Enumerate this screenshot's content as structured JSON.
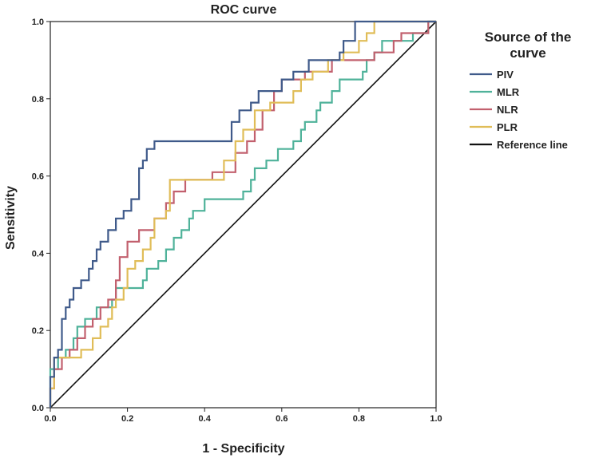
{
  "chart_data": {
    "type": "line",
    "title": "ROC curve",
    "xlabel": "1 - Specificity",
    "ylabel": "Sensitivity",
    "xlim": [
      0,
      1
    ],
    "ylim": [
      0,
      1
    ],
    "x_ticks": [
      "0.0",
      "0.2",
      "0.4",
      "0.6",
      "0.8",
      "1.0"
    ],
    "y_ticks": [
      "0.0",
      "0.2",
      "0.4",
      "0.6",
      "0.8",
      "1.0"
    ],
    "legend": {
      "title_lines": [
        "Source of the",
        "curve"
      ],
      "placement": "right"
    },
    "series": [
      {
        "name": "PIV",
        "color": "#3f5a8a",
        "points": [
          [
            0,
            0
          ],
          [
            0,
            0.08
          ],
          [
            0.01,
            0.08
          ],
          [
            0.01,
            0.13
          ],
          [
            0.02,
            0.13
          ],
          [
            0.02,
            0.15
          ],
          [
            0.03,
            0.15
          ],
          [
            0.03,
            0.23
          ],
          [
            0.04,
            0.23
          ],
          [
            0.04,
            0.26
          ],
          [
            0.05,
            0.26
          ],
          [
            0.05,
            0.28
          ],
          [
            0.06,
            0.28
          ],
          [
            0.06,
            0.31
          ],
          [
            0.08,
            0.31
          ],
          [
            0.08,
            0.33
          ],
          [
            0.1,
            0.33
          ],
          [
            0.1,
            0.36
          ],
          [
            0.11,
            0.36
          ],
          [
            0.11,
            0.38
          ],
          [
            0.12,
            0.38
          ],
          [
            0.12,
            0.41
          ],
          [
            0.13,
            0.41
          ],
          [
            0.13,
            0.43
          ],
          [
            0.15,
            0.43
          ],
          [
            0.15,
            0.46
          ],
          [
            0.17,
            0.46
          ],
          [
            0.17,
            0.49
          ],
          [
            0.19,
            0.49
          ],
          [
            0.19,
            0.51
          ],
          [
            0.21,
            0.51
          ],
          [
            0.21,
            0.54
          ],
          [
            0.23,
            0.54
          ],
          [
            0.23,
            0.62
          ],
          [
            0.24,
            0.62
          ],
          [
            0.24,
            0.64
          ],
          [
            0.25,
            0.64
          ],
          [
            0.25,
            0.67
          ],
          [
            0.27,
            0.67
          ],
          [
            0.27,
            0.69
          ],
          [
            0.47,
            0.69
          ],
          [
            0.47,
            0.74
          ],
          [
            0.49,
            0.74
          ],
          [
            0.49,
            0.77
          ],
          [
            0.52,
            0.77
          ],
          [
            0.52,
            0.79
          ],
          [
            0.54,
            0.79
          ],
          [
            0.54,
            0.82
          ],
          [
            0.6,
            0.82
          ],
          [
            0.6,
            0.85
          ],
          [
            0.63,
            0.85
          ],
          [
            0.63,
            0.87
          ],
          [
            0.67,
            0.87
          ],
          [
            0.67,
            0.9
          ],
          [
            0.75,
            0.9
          ],
          [
            0.75,
            0.92
          ],
          [
            0.76,
            0.92
          ],
          [
            0.76,
            0.95
          ],
          [
            0.79,
            0.95
          ],
          [
            0.79,
            1.0
          ],
          [
            1.0,
            1.0
          ]
        ]
      },
      {
        "name": "MLR",
        "color": "#4fb29a",
        "points": [
          [
            0,
            0
          ],
          [
            0,
            0.1
          ],
          [
            0.02,
            0.1
          ],
          [
            0.02,
            0.13
          ],
          [
            0.04,
            0.13
          ],
          [
            0.04,
            0.15
          ],
          [
            0.06,
            0.15
          ],
          [
            0.06,
            0.18
          ],
          [
            0.07,
            0.18
          ],
          [
            0.07,
            0.21
          ],
          [
            0.09,
            0.21
          ],
          [
            0.09,
            0.23
          ],
          [
            0.12,
            0.23
          ],
          [
            0.12,
            0.26
          ],
          [
            0.16,
            0.26
          ],
          [
            0.16,
            0.28
          ],
          [
            0.17,
            0.28
          ],
          [
            0.17,
            0.31
          ],
          [
            0.24,
            0.31
          ],
          [
            0.24,
            0.33
          ],
          [
            0.25,
            0.33
          ],
          [
            0.25,
            0.36
          ],
          [
            0.28,
            0.36
          ],
          [
            0.28,
            0.38
          ],
          [
            0.3,
            0.38
          ],
          [
            0.3,
            0.41
          ],
          [
            0.32,
            0.41
          ],
          [
            0.32,
            0.44
          ],
          [
            0.34,
            0.44
          ],
          [
            0.34,
            0.46
          ],
          [
            0.36,
            0.46
          ],
          [
            0.36,
            0.49
          ],
          [
            0.37,
            0.49
          ],
          [
            0.37,
            0.51
          ],
          [
            0.4,
            0.51
          ],
          [
            0.4,
            0.54
          ],
          [
            0.5,
            0.54
          ],
          [
            0.5,
            0.56
          ],
          [
            0.52,
            0.56
          ],
          [
            0.52,
            0.59
          ],
          [
            0.53,
            0.59
          ],
          [
            0.53,
            0.62
          ],
          [
            0.56,
            0.62
          ],
          [
            0.56,
            0.64
          ],
          [
            0.59,
            0.64
          ],
          [
            0.59,
            0.67
          ],
          [
            0.63,
            0.67
          ],
          [
            0.63,
            0.69
          ],
          [
            0.65,
            0.69
          ],
          [
            0.65,
            0.72
          ],
          [
            0.66,
            0.72
          ],
          [
            0.66,
            0.74
          ],
          [
            0.69,
            0.74
          ],
          [
            0.69,
            0.77
          ],
          [
            0.7,
            0.77
          ],
          [
            0.7,
            0.79
          ],
          [
            0.73,
            0.79
          ],
          [
            0.73,
            0.82
          ],
          [
            0.75,
            0.82
          ],
          [
            0.75,
            0.85
          ],
          [
            0.81,
            0.85
          ],
          [
            0.81,
            0.87
          ],
          [
            0.82,
            0.87
          ],
          [
            0.82,
            0.9
          ],
          [
            0.84,
            0.9
          ],
          [
            0.84,
            0.92
          ],
          [
            0.86,
            0.92
          ],
          [
            0.86,
            0.95
          ],
          [
            0.94,
            0.95
          ],
          [
            0.94,
            0.97
          ],
          [
            0.98,
            0.97
          ],
          [
            0.98,
            1.0
          ],
          [
            1.0,
            1.0
          ]
        ]
      },
      {
        "name": "NLR",
        "color": "#c2606e",
        "points": [
          [
            0,
            0
          ],
          [
            0,
            0.05
          ],
          [
            0.01,
            0.05
          ],
          [
            0.01,
            0.1
          ],
          [
            0.03,
            0.1
          ],
          [
            0.03,
            0.13
          ],
          [
            0.05,
            0.13
          ],
          [
            0.05,
            0.15
          ],
          [
            0.07,
            0.15
          ],
          [
            0.07,
            0.18
          ],
          [
            0.09,
            0.18
          ],
          [
            0.09,
            0.21
          ],
          [
            0.11,
            0.21
          ],
          [
            0.11,
            0.23
          ],
          [
            0.13,
            0.23
          ],
          [
            0.13,
            0.26
          ],
          [
            0.15,
            0.26
          ],
          [
            0.15,
            0.28
          ],
          [
            0.17,
            0.28
          ],
          [
            0.17,
            0.33
          ],
          [
            0.18,
            0.33
          ],
          [
            0.18,
            0.39
          ],
          [
            0.2,
            0.39
          ],
          [
            0.2,
            0.43
          ],
          [
            0.23,
            0.43
          ],
          [
            0.23,
            0.46
          ],
          [
            0.27,
            0.46
          ],
          [
            0.27,
            0.49
          ],
          [
            0.3,
            0.49
          ],
          [
            0.3,
            0.53
          ],
          [
            0.32,
            0.53
          ],
          [
            0.32,
            0.56
          ],
          [
            0.35,
            0.56
          ],
          [
            0.35,
            0.59
          ],
          [
            0.42,
            0.59
          ],
          [
            0.42,
            0.61
          ],
          [
            0.48,
            0.61
          ],
          [
            0.48,
            0.66
          ],
          [
            0.51,
            0.66
          ],
          [
            0.51,
            0.69
          ],
          [
            0.53,
            0.69
          ],
          [
            0.53,
            0.72
          ],
          [
            0.55,
            0.72
          ],
          [
            0.55,
            0.77
          ],
          [
            0.58,
            0.77
          ],
          [
            0.58,
            0.82
          ],
          [
            0.6,
            0.82
          ],
          [
            0.6,
            0.85
          ],
          [
            0.66,
            0.85
          ],
          [
            0.66,
            0.87
          ],
          [
            0.73,
            0.87
          ],
          [
            0.73,
            0.9
          ],
          [
            0.84,
            0.9
          ],
          [
            0.84,
            0.92
          ],
          [
            0.89,
            0.92
          ],
          [
            0.89,
            0.95
          ],
          [
            0.91,
            0.95
          ],
          [
            0.91,
            0.97
          ],
          [
            0.98,
            0.97
          ],
          [
            0.98,
            1.0
          ],
          [
            1.0,
            1.0
          ]
        ]
      },
      {
        "name": "PLR",
        "color": "#e0bd58",
        "points": [
          [
            0,
            0
          ],
          [
            0,
            0.05
          ],
          [
            0.01,
            0.05
          ],
          [
            0.01,
            0.13
          ],
          [
            0.08,
            0.13
          ],
          [
            0.08,
            0.15
          ],
          [
            0.11,
            0.15
          ],
          [
            0.11,
            0.18
          ],
          [
            0.13,
            0.18
          ],
          [
            0.13,
            0.21
          ],
          [
            0.15,
            0.21
          ],
          [
            0.15,
            0.23
          ],
          [
            0.16,
            0.23
          ],
          [
            0.16,
            0.26
          ],
          [
            0.17,
            0.26
          ],
          [
            0.17,
            0.28
          ],
          [
            0.19,
            0.28
          ],
          [
            0.19,
            0.31
          ],
          [
            0.2,
            0.31
          ],
          [
            0.2,
            0.36
          ],
          [
            0.22,
            0.36
          ],
          [
            0.22,
            0.38
          ],
          [
            0.24,
            0.38
          ],
          [
            0.24,
            0.41
          ],
          [
            0.26,
            0.41
          ],
          [
            0.26,
            0.44
          ],
          [
            0.27,
            0.44
          ],
          [
            0.27,
            0.49
          ],
          [
            0.3,
            0.49
          ],
          [
            0.3,
            0.51
          ],
          [
            0.31,
            0.51
          ],
          [
            0.31,
            0.59
          ],
          [
            0.45,
            0.59
          ],
          [
            0.45,
            0.64
          ],
          [
            0.48,
            0.64
          ],
          [
            0.48,
            0.69
          ],
          [
            0.5,
            0.69
          ],
          [
            0.5,
            0.72
          ],
          [
            0.53,
            0.72
          ],
          [
            0.53,
            0.77
          ],
          [
            0.57,
            0.77
          ],
          [
            0.57,
            0.79
          ],
          [
            0.63,
            0.79
          ],
          [
            0.63,
            0.82
          ],
          [
            0.65,
            0.82
          ],
          [
            0.65,
            0.85
          ],
          [
            0.68,
            0.85
          ],
          [
            0.68,
            0.87
          ],
          [
            0.72,
            0.87
          ],
          [
            0.72,
            0.9
          ],
          [
            0.76,
            0.9
          ],
          [
            0.76,
            0.92
          ],
          [
            0.8,
            0.92
          ],
          [
            0.8,
            0.95
          ],
          [
            0.82,
            0.95
          ],
          [
            0.82,
            0.97
          ],
          [
            0.84,
            0.97
          ],
          [
            0.84,
            1.0
          ],
          [
            1.0,
            1.0
          ]
        ]
      },
      {
        "name": "Reference line",
        "color": "#111111",
        "points": [
          [
            0,
            0
          ],
          [
            1,
            1
          ]
        ]
      }
    ]
  }
}
